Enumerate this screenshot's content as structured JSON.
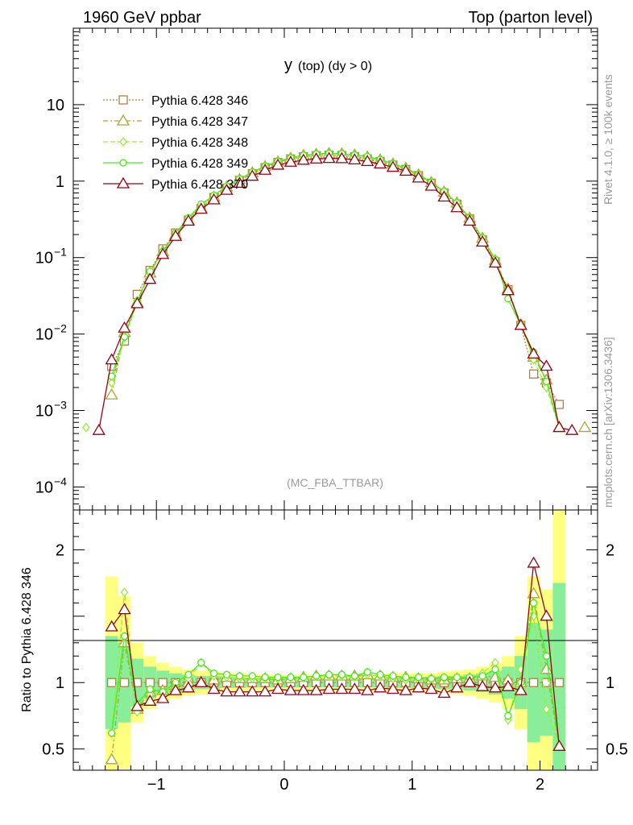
{
  "header": {
    "left": "1960 GeV ppbar",
    "right": "Top (parton level)"
  },
  "side": {
    "rivet": "Rivet 4.1.0, ≥ 100k events",
    "mcplots": "mcplots.cern.ch [arXiv:1306.3436]"
  },
  "chart_data": {
    "type": "line",
    "title_main": "y",
    "title_sub": "(top)  (dy > 0)",
    "watermark": "(MC_FBA_TTBAR)",
    "xlim": [
      -1.65,
      2.45
    ],
    "ylim_main": [
      5e-05,
      100
    ],
    "ylim_ratio": [
      0.34,
      2.3
    ],
    "xticks": [
      {
        "v": -1,
        "label": "−1"
      },
      {
        "v": 0,
        "label": "0"
      },
      {
        "v": 1,
        "label": "1"
      },
      {
        "v": 2,
        "label": "2"
      }
    ],
    "yticks_main": [
      {
        "v": 10,
        "label": "10"
      },
      {
        "v": 1,
        "label": "1"
      },
      {
        "v": 0.1,
        "label": "10",
        "sup": "−1"
      },
      {
        "v": 0.01,
        "label": "10",
        "sup": "−2"
      },
      {
        "v": 0.001,
        "label": "10",
        "sup": "−3"
      },
      {
        "v": 0.0001,
        "label": "10",
        "sup": "−4"
      }
    ],
    "yticks_ratio": [
      {
        "v": 2,
        "label": "2"
      },
      {
        "v": 1,
        "label": "1"
      },
      {
        "v": 0.5,
        "label": "0.5"
      }
    ],
    "ratio_ylabel": "Ratio to Pythia 6.428 346",
    "x": [
      -1.55,
      -1.45,
      -1.35,
      -1.25,
      -1.15,
      -1.05,
      -0.95,
      -0.85,
      -0.75,
      -0.65,
      -0.55,
      -0.45,
      -0.35,
      -0.25,
      -0.15,
      -0.05,
      0.05,
      0.15,
      0.25,
      0.35,
      0.45,
      0.55,
      0.65,
      0.75,
      0.85,
      0.95,
      1.05,
      1.15,
      1.25,
      1.35,
      1.45,
      1.55,
      1.65,
      1.75,
      1.85,
      1.95,
      2.05,
      2.15,
      2.25,
      2.35
    ],
    "series": [
      {
        "name": "Pythia 6.428 346",
        "color": "#b5803f",
        "dash": "2,2",
        "marker": "square",
        "values": [
          null,
          null,
          0.0038,
          0.0081,
          0.033,
          0.068,
          0.13,
          0.21,
          0.31,
          0.44,
          0.61,
          0.81,
          1.02,
          1.25,
          1.5,
          1.75,
          1.95,
          2.08,
          2.15,
          2.18,
          2.16,
          2.09,
          1.95,
          1.8,
          1.62,
          1.42,
          1.18,
          0.94,
          0.7,
          0.5,
          0.32,
          0.17,
          0.088,
          0.038,
          0.013,
          0.003,
          0.0023,
          0.0012,
          null,
          null
        ],
        "ratio": [
          null,
          null,
          1.0,
          1.0,
          1.0,
          1.0,
          1.0,
          1.0,
          1.0,
          1.0,
          1.0,
          1.0,
          1.0,
          1.0,
          1.0,
          1.0,
          1.0,
          1.0,
          1.0,
          1.0,
          1.0,
          1.0,
          1.0,
          1.0,
          1.0,
          1.0,
          1.0,
          1.0,
          1.0,
          1.0,
          1.0,
          1.0,
          1.0,
          1.0,
          1.0,
          1.0,
          1.0,
          1.0,
          null,
          null
        ]
      },
      {
        "name": "Pythia 6.428 347",
        "color": "#a9a832",
        "dash": "6,3,2,3",
        "marker": "triangle",
        "values": [
          null,
          null,
          0.0016,
          0.0105,
          0.026,
          0.063,
          0.12,
          0.2,
          0.31,
          0.44,
          0.62,
          0.84,
          1.05,
          1.29,
          1.55,
          1.79,
          2.0,
          2.17,
          2.25,
          2.3,
          2.28,
          2.2,
          2.07,
          1.9,
          1.68,
          1.48,
          1.21,
          0.96,
          0.72,
          0.52,
          0.33,
          0.18,
          0.092,
          0.039,
          0.013,
          0.005,
          0.0025,
          0.0006,
          null,
          0.0006
        ],
        "ratio": [
          null,
          null,
          0.42,
          1.3,
          0.8,
          0.93,
          0.94,
          0.96,
          1.0,
          1.0,
          1.02,
          1.04,
          1.03,
          1.03,
          1.03,
          1.02,
          1.03,
          1.04,
          1.05,
          1.05,
          1.05,
          1.05,
          1.06,
          1.05,
          1.04,
          1.04,
          1.03,
          1.02,
          1.02,
          1.03,
          1.03,
          1.05,
          1.04,
          1.02,
          1.0,
          1.67,
          1.1,
          0.52,
          null,
          null
        ]
      },
      {
        "name": "Pythia 6.428 348",
        "color": "#99ee33",
        "dash": "6,3",
        "marker": "diamond",
        "values": [
          0.0006,
          null,
          0.0023,
          0.009,
          0.026,
          0.062,
          0.12,
          0.21,
          0.32,
          0.47,
          0.64,
          0.84,
          1.05,
          1.29,
          1.56,
          1.8,
          2.02,
          2.17,
          2.25,
          2.28,
          2.26,
          2.18,
          2.06,
          1.88,
          1.67,
          1.45,
          1.2,
          0.96,
          0.72,
          0.52,
          0.33,
          0.18,
          0.095,
          0.035,
          0.014,
          0.0046,
          0.002,
          0.0006,
          null,
          null
        ],
        "ratio": [
          null,
          null,
          0.62,
          1.68,
          0.78,
          0.91,
          0.92,
          0.98,
          1.03,
          1.15,
          1.05,
          1.04,
          1.03,
          1.03,
          1.03,
          1.03,
          1.04,
          1.04,
          1.05,
          1.05,
          1.05,
          1.04,
          1.06,
          1.05,
          1.03,
          1.02,
          1.02,
          1.02,
          1.03,
          1.04,
          1.04,
          1.07,
          1.15,
          0.72,
          1.1,
          1.5,
          0.8,
          0.52,
          null,
          null
        ]
      },
      {
        "name": "Pythia 6.428 349",
        "color": "#44ee11",
        "dash": "",
        "marker": "circle",
        "values": [
          null,
          null,
          0.0028,
          0.0092,
          0.027,
          0.066,
          0.12,
          0.21,
          0.33,
          0.5,
          0.65,
          0.86,
          1.07,
          1.31,
          1.57,
          1.82,
          2.02,
          2.17,
          2.26,
          2.31,
          2.28,
          2.2,
          2.1,
          1.91,
          1.7,
          1.48,
          1.22,
          0.97,
          0.73,
          0.52,
          0.33,
          0.18,
          0.095,
          0.029,
          0.013,
          0.0058,
          0.0024,
          0.0006,
          null,
          null
        ],
        "ratio": [
          null,
          null,
          0.62,
          1.35,
          0.84,
          0.95,
          0.93,
          1.0,
          1.06,
          1.15,
          1.07,
          1.06,
          1.05,
          1.05,
          1.04,
          1.04,
          1.04,
          1.04,
          1.05,
          1.06,
          1.06,
          1.05,
          1.08,
          1.06,
          1.05,
          1.04,
          1.04,
          1.03,
          1.04,
          1.04,
          1.04,
          1.05,
          1.1,
          0.75,
          1.0,
          1.6,
          1.2,
          0.52,
          null,
          null
        ]
      },
      {
        "name": "Pythia 6.428 370",
        "color": "#990011",
        "dash": "",
        "marker": "triangle",
        "values": [
          null,
          0.00055,
          0.0046,
          0.012,
          0.025,
          0.052,
          0.11,
          0.19,
          0.3,
          0.43,
          0.57,
          0.76,
          0.94,
          1.16,
          1.39,
          1.62,
          1.77,
          1.88,
          1.95,
          1.98,
          1.97,
          1.9,
          1.81,
          1.68,
          1.52,
          1.35,
          1.1,
          0.86,
          0.62,
          0.45,
          0.3,
          0.16,
          0.085,
          0.037,
          0.013,
          0.0055,
          0.0038,
          0.0006,
          0.00055,
          null
        ],
        "ratio": [
          null,
          null,
          1.42,
          1.55,
          0.82,
          0.86,
          0.88,
          0.94,
          0.96,
          1.0,
          0.95,
          0.93,
          0.93,
          0.93,
          0.93,
          0.95,
          0.94,
          0.94,
          0.94,
          0.95,
          0.95,
          0.95,
          0.94,
          0.96,
          0.95,
          0.94,
          0.96,
          0.95,
          0.92,
          0.96,
          1.0,
          0.97,
          0.96,
          0.97,
          0.94,
          1.9,
          1.5,
          0.52,
          null,
          null
        ]
      }
    ],
    "bands": {
      "x": [
        -1.4,
        -1.3,
        -1.2,
        -1.1,
        -1.0,
        -0.9,
        -0.8,
        -0.7,
        -0.6,
        -0.5,
        -0.4,
        -0.3,
        -0.2,
        -0.1,
        0.0,
        0.1,
        0.2,
        0.3,
        0.4,
        0.5,
        0.6,
        0.7,
        0.8,
        0.9,
        1.0,
        1.1,
        1.2,
        1.3,
        1.4,
        1.5,
        1.6,
        1.7,
        1.8,
        1.9,
        2.0,
        2.1,
        2.2
      ],
      "yellow_half": [
        0.8,
        0.65,
        0.3,
        0.2,
        0.15,
        0.12,
        0.1,
        0.09,
        0.08,
        0.07,
        0.07,
        0.06,
        0.06,
        0.06,
        0.06,
        0.06,
        0.06,
        0.06,
        0.06,
        0.06,
        0.06,
        0.06,
        0.07,
        0.07,
        0.07,
        0.07,
        0.08,
        0.09,
        0.1,
        0.12,
        0.15,
        0.2,
        0.35,
        0.8,
        0.7,
        1.3
      ],
      "green_half": [
        0.35,
        0.3,
        0.18,
        0.12,
        0.09,
        0.07,
        0.06,
        0.05,
        0.05,
        0.04,
        0.04,
        0.035,
        0.035,
        0.035,
        0.035,
        0.035,
        0.035,
        0.035,
        0.035,
        0.035,
        0.035,
        0.035,
        0.04,
        0.04,
        0.04,
        0.045,
        0.05,
        0.05,
        0.06,
        0.07,
        0.09,
        0.12,
        0.2,
        0.45,
        0.4,
        0.75
      ]
    }
  }
}
